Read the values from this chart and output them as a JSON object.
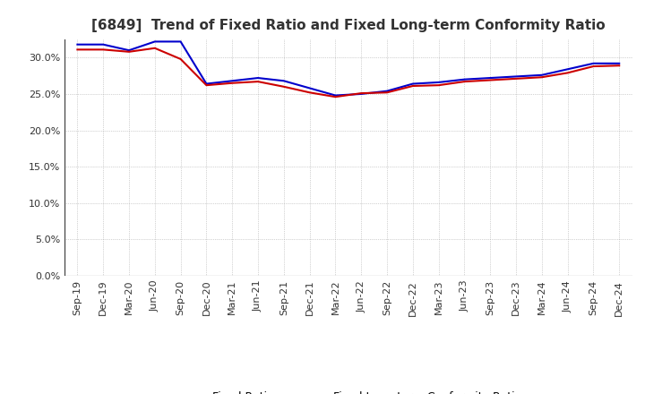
{
  "title": "[6849]  Trend of Fixed Ratio and Fixed Long-term Conformity Ratio",
  "x_labels": [
    "Sep-19",
    "Dec-19",
    "Mar-20",
    "Jun-20",
    "Sep-20",
    "Dec-20",
    "Mar-21",
    "Jun-21",
    "Sep-21",
    "Dec-21",
    "Mar-22",
    "Jun-22",
    "Sep-22",
    "Dec-22",
    "Mar-23",
    "Jun-23",
    "Sep-23",
    "Dec-23",
    "Mar-24",
    "Jun-24",
    "Sep-24",
    "Dec-24"
  ],
  "fixed_ratio": [
    0.318,
    0.318,
    0.31,
    0.322,
    0.322,
    0.264,
    0.268,
    0.272,
    0.268,
    0.258,
    0.248,
    0.25,
    0.254,
    0.264,
    0.266,
    0.27,
    0.272,
    0.274,
    0.276,
    0.284,
    0.292,
    0.292
  ],
  "fixed_lt_ratio": [
    0.311,
    0.311,
    0.308,
    0.313,
    0.298,
    0.262,
    0.265,
    0.267,
    0.26,
    0.252,
    0.246,
    0.251,
    0.252,
    0.261,
    0.262,
    0.267,
    0.269,
    0.271,
    0.273,
    0.279,
    0.288,
    0.289
  ],
  "fixed_ratio_color": "#0000cc",
  "fixed_lt_ratio_color": "#cc0000",
  "ylim": [
    0.0,
    0.325
  ],
  "yticks": [
    0.0,
    0.05,
    0.1,
    0.15,
    0.2,
    0.25,
    0.3
  ],
  "background_color": "#ffffff",
  "plot_bg_color": "#ffffff",
  "grid_color": "#aaaaaa",
  "title_fontsize": 11,
  "tick_fontsize": 8,
  "legend_fontsize": 9
}
